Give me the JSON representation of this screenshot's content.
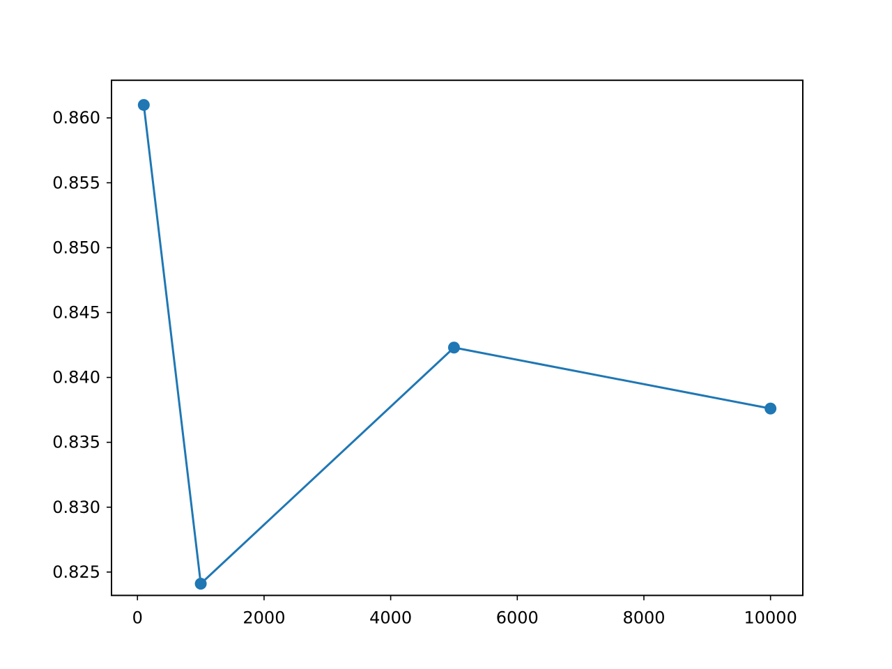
{
  "chart_data": {
    "type": "line",
    "title": "",
    "xlabel": "",
    "ylabel": "",
    "xlim": [
      -410,
      10510
    ],
    "ylim": [
      0.8232,
      0.8629
    ],
    "x_ticks": [
      0,
      2000,
      4000,
      6000,
      8000,
      10000
    ],
    "x_tick_labels": [
      "0",
      "2000",
      "4000",
      "6000",
      "8000",
      "10000"
    ],
    "y_ticks": [
      0.825,
      0.83,
      0.835,
      0.84,
      0.845,
      0.85,
      0.855,
      0.86
    ],
    "y_tick_labels": [
      "0.825",
      "0.830",
      "0.835",
      "0.840",
      "0.845",
      "0.850",
      "0.855",
      "0.860"
    ],
    "grid": false,
    "legend": "none",
    "series": [
      {
        "x": [
          100,
          1000,
          5000,
          10000
        ],
        "y": [
          0.861,
          0.8241,
          0.8423,
          0.8376
        ],
        "color": "#1f77b4",
        "marker": "circle"
      }
    ]
  }
}
